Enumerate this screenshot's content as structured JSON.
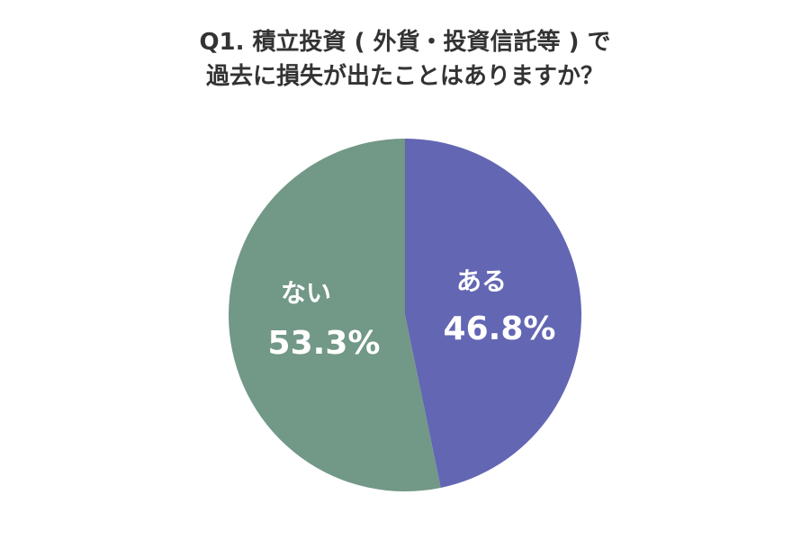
{
  "title_lines": [
    "Q1. 積立投資 ( 外貨・投資信託等 ) で",
    "過去に損失が出たことはありますか？"
  ],
  "chart_data": {
    "type": "pie",
    "title": "Q1. 積立投資 ( 外貨・投資信託等 ) で過去に損失が出たことはありますか？",
    "slices": [
      {
        "label": "ある",
        "value": 46.8,
        "value_label": "46.8%",
        "color": "#6366b3"
      },
      {
        "label": "ない",
        "value": 53.3,
        "value_label": "53.3%",
        "color": "#729887"
      }
    ],
    "start_angle": "12 o'clock",
    "direction": "clockwise",
    "legend": "none"
  }
}
